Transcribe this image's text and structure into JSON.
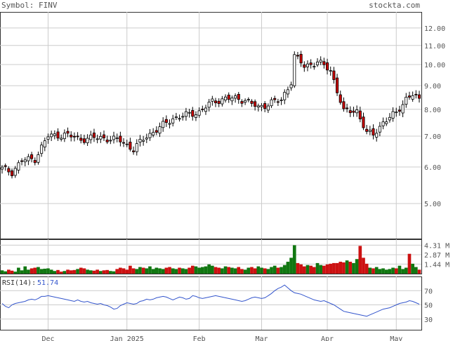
{
  "header": {
    "symbol_label": "Symbol: FINV",
    "site": "stockta.com"
  },
  "rsi": {
    "label": "RSI(14):",
    "value": "51.74"
  },
  "colors": {
    "up_candle": "#ffffff",
    "down_candle": "#cc0000",
    "vol_up": "#117711",
    "vol_down": "#cc1111",
    "rsi_line": "#3355cc",
    "grid": "#cccccc",
    "frame": "#333333"
  },
  "chart_data": [
    {
      "type": "candlestick",
      "title": "",
      "x_tick_labels": [
        "Dec",
        "Jan 2025",
        "Feb",
        "Mar",
        "Apr",
        "May"
      ],
      "y_tick_labels": [
        "12.00",
        "11.00",
        "10.00",
        "9.00",
        "8.00",
        "7.00",
        "6.00",
        "5.00"
      ],
      "y_scale": "log",
      "ylim": [
        4.2,
        13.0
      ],
      "grid": true,
      "n_days": 128,
      "ohlc_anchors": [
        {
          "day": 0,
          "close": 5.95
        },
        {
          "day": 3,
          "close": 5.85
        },
        {
          "day": 6,
          "close": 6.2
        },
        {
          "day": 10,
          "close": 6.25
        },
        {
          "day": 14,
          "close": 7.0
        },
        {
          "day": 19,
          "close": 7.05
        },
        {
          "day": 24,
          "close": 6.9
        },
        {
          "day": 30,
          "close": 6.95
        },
        {
          "day": 36,
          "close": 6.85
        },
        {
          "day": 40,
          "close": 6.55
        },
        {
          "day": 44,
          "close": 7.0
        },
        {
          "day": 48,
          "close": 7.3
        },
        {
          "day": 52,
          "close": 7.65
        },
        {
          "day": 57,
          "close": 7.8
        },
        {
          "day": 60,
          "close": 7.9
        },
        {
          "day": 64,
          "close": 8.3
        },
        {
          "day": 68,
          "close": 8.45
        },
        {
          "day": 74,
          "close": 8.4
        },
        {
          "day": 78,
          "close": 8.05
        },
        {
          "day": 82,
          "close": 8.3
        },
        {
          "day": 85,
          "close": 8.35
        },
        {
          "day": 88,
          "close": 9.2
        },
        {
          "day": 89,
          "close": 10.45
        },
        {
          "day": 92,
          "close": 9.9
        },
        {
          "day": 96,
          "close": 10.15
        },
        {
          "day": 100,
          "close": 9.7
        },
        {
          "day": 102,
          "close": 8.8
        },
        {
          "day": 104,
          "close": 7.9
        },
        {
          "day": 108,
          "close": 7.95
        },
        {
          "day": 111,
          "close": 7.1
        },
        {
          "day": 113,
          "close": 7.05
        },
        {
          "day": 116,
          "close": 7.5
        },
        {
          "day": 120,
          "close": 7.85
        },
        {
          "day": 123,
          "close": 8.45
        },
        {
          "day": 125,
          "close": 8.6
        },
        {
          "day": 127,
          "close": 8.35
        }
      ]
    },
    {
      "type": "bar",
      "title": "",
      "y_tick_labels": [
        "4.31 M",
        "2.87 M",
        "1.44 M"
      ],
      "ylim": [
        0,
        5.2
      ],
      "unit": "M",
      "values_by_day": [
        0.5,
        0.35,
        0.6,
        0.45,
        0.3,
        0.9,
        0.5,
        1.1,
        0.6,
        0.8,
        0.9,
        1.0,
        0.7,
        0.75,
        0.8,
        0.6,
        0.4,
        0.55,
        0.3,
        0.4,
        0.6,
        0.5,
        0.55,
        0.7,
        0.9,
        0.8,
        0.6,
        0.5,
        0.45,
        0.6,
        0.4,
        0.5,
        0.55,
        0.4,
        0.35,
        0.7,
        0.9,
        0.8,
        0.6,
        1.2,
        0.8,
        0.7,
        1.0,
        0.9,
        0.8,
        1.1,
        0.7,
        0.9,
        0.8,
        0.7,
        0.9,
        1.0,
        0.8,
        0.7,
        0.9,
        0.8,
        0.7,
        0.9,
        1.2,
        1.1,
        0.9,
        1.0,
        1.1,
        1.4,
        1.2,
        1.0,
        0.9,
        0.8,
        1.1,
        1.0,
        0.9,
        0.8,
        1.0,
        0.7,
        0.6,
        0.9,
        1.0,
        0.8,
        1.1,
        0.9,
        0.8,
        0.7,
        1.0,
        1.2,
        0.9,
        1.0,
        1.3,
        1.8,
        2.4,
        4.3,
        1.6,
        1.4,
        1.1,
        1.3,
        1.2,
        1.0,
        1.6,
        1.3,
        1.2,
        1.4,
        1.5,
        1.6,
        1.6,
        1.8,
        1.7,
        2.0,
        1.8,
        1.6,
        2.2,
        4.2,
        2.4,
        1.5,
        0.9,
        0.8,
        1.0,
        0.7,
        0.8,
        0.6,
        0.7,
        0.9,
        0.8,
        1.2,
        0.7,
        0.9,
        3.0,
        1.5,
        1.0,
        0.6
      ]
    },
    {
      "type": "line",
      "title": "",
      "series": [
        {
          "name": "RSI(14)",
          "values_by_day": [
            52,
            48,
            46,
            50,
            52,
            53,
            54,
            55,
            57,
            58,
            57,
            59,
            62,
            62,
            63,
            62,
            61,
            60,
            59,
            58,
            57,
            56,
            55,
            57,
            55,
            54,
            55,
            53,
            52,
            51,
            52,
            50,
            49,
            47,
            44,
            45,
            49,
            51,
            53,
            52,
            51,
            52,
            55,
            56,
            58,
            57,
            58,
            60,
            61,
            62,
            61,
            59,
            57,
            59,
            61,
            60,
            58,
            59,
            63,
            62,
            60,
            59,
            60,
            61,
            62,
            63,
            62,
            61,
            60,
            59,
            58,
            57,
            56,
            55,
            56,
            58,
            60,
            61,
            60,
            59,
            60,
            63,
            66,
            70,
            73,
            75,
            78,
            74,
            70,
            67,
            66,
            65,
            63,
            61,
            59,
            57,
            56,
            55,
            56,
            54,
            52,
            50,
            47,
            44,
            41,
            40,
            39,
            38,
            37,
            36,
            35,
            34,
            36,
            38,
            40,
            42,
            44,
            45,
            46,
            48,
            50,
            52,
            53,
            54,
            56,
            55,
            53,
            51
          ]
        }
      ],
      "y_tick_labels": [
        "70",
        "50",
        "30"
      ],
      "ylim": [
        15,
        90
      ]
    }
  ]
}
